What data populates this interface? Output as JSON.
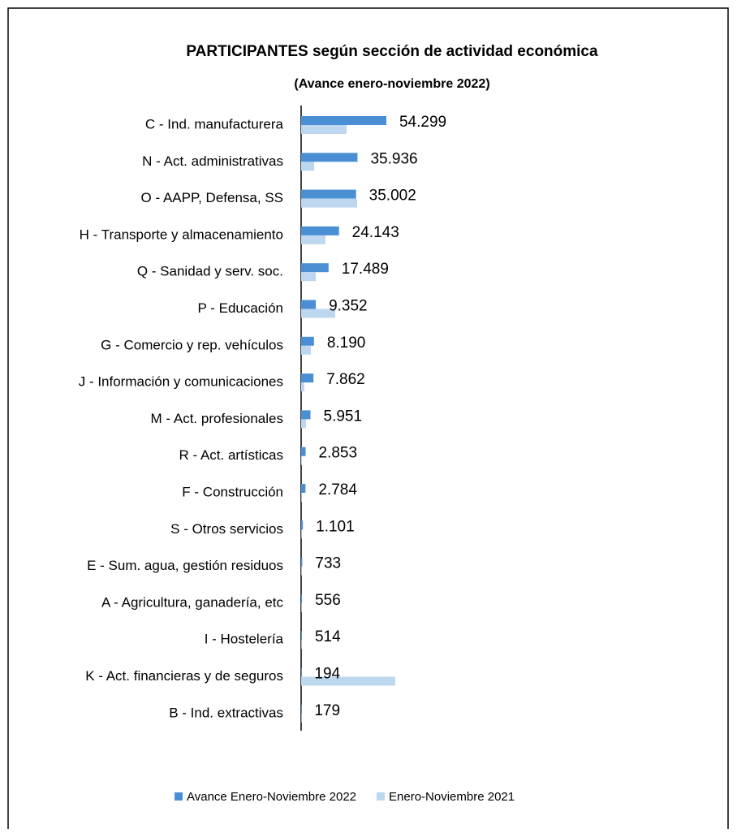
{
  "chart_data": {
    "type": "bar",
    "orientation": "horizontal",
    "title": "PARTICIPANTES  según sección de actividad  económica",
    "subtitle": "(Avance enero-noviembre  2022)",
    "categories": [
      "C - Ind. manufacturera",
      "N - Act. administrativas",
      "O - AAPP, Defensa, SS",
      "H - Transporte y almacenamiento",
      "Q - Sanidad y serv. soc.",
      "P - Educación",
      "G - Comercio y rep. vehículos",
      "J - Información y comunicaciones",
      "M - Act. profesionales",
      "R - Act. artísticas",
      "F - Construcción",
      "S - Otros servicios",
      "E - Sum. agua, gestión residuos",
      "A - Agricultura, ganadería, etc",
      "I - Hostelería",
      "K - Act. financieras y de seguros",
      "B - Ind. extractivas"
    ],
    "series": [
      {
        "name": "Avance Enero-Noviembre 2022",
        "color": "#4a8fd4",
        "values": [
          54299,
          35936,
          35002,
          24143,
          17489,
          9352,
          8190,
          7862,
          5951,
          2853,
          2784,
          1101,
          733,
          556,
          514,
          194,
          179
        ],
        "value_labels": [
          "54.299",
          "35.936",
          "35.002",
          "24.143",
          "17.489",
          "9.352",
          "8.190",
          "7.862",
          "5.951",
          "2.853",
          "2.784",
          "1.101",
          "733",
          "556",
          "514",
          "194",
          "179"
        ]
      },
      {
        "name": "Enero-Noviembre 2021",
        "color": "#bdd7ee",
        "values": [
          29000,
          8300,
          35700,
          15500,
          9300,
          21700,
          6200,
          2000,
          3100,
          500,
          300,
          300,
          300,
          300,
          300,
          60000,
          200
        ]
      }
    ],
    "legend": "bottom"
  }
}
